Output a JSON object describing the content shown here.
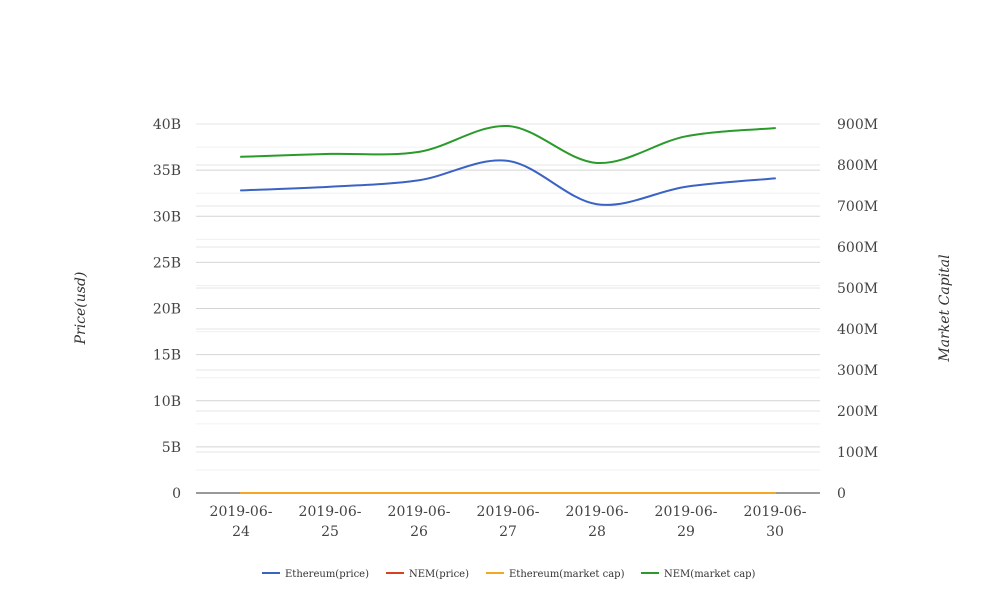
{
  "chart_data": {
    "type": "line",
    "categories": [
      "2019-06-24",
      "2019-06-25",
      "2019-06-26",
      "2019-06-27",
      "2019-06-28",
      "2019-06-29",
      "2019-06-30"
    ],
    "category_lines": [
      [
        "2019-06-",
        "24"
      ],
      [
        "2019-06-",
        "25"
      ],
      [
        "2019-06-",
        "26"
      ],
      [
        "2019-06-",
        "27"
      ],
      [
        "2019-06-",
        "28"
      ],
      [
        "2019-06-",
        "29"
      ],
      [
        "2019-06-",
        "30"
      ]
    ],
    "y_left": {
      "label": "Price(usd)",
      "min": 0,
      "max": 40000000000,
      "ticks": [
        0,
        5000000000,
        10000000000,
        15000000000,
        20000000000,
        25000000000,
        30000000000,
        35000000000,
        40000000000
      ],
      "tick_labels": [
        "0",
        "5B",
        "10B",
        "15B",
        "20B",
        "25B",
        "30B",
        "35B",
        "40B"
      ]
    },
    "y_right": {
      "label": "Market Capital",
      "min": 0,
      "max": 900000000,
      "ticks": [
        0,
        100000000,
        200000000,
        300000000,
        400000000,
        500000000,
        600000000,
        700000000,
        800000000,
        900000000
      ],
      "tick_labels": [
        "0",
        "100M",
        "200M",
        "300M",
        "400M",
        "500M",
        "600M",
        "700M",
        "800M",
        "900M"
      ]
    },
    "series": [
      {
        "name": "Ethereum(price)",
        "axis": "left",
        "color": "#3b63c4",
        "values": [
          32800000000,
          33200000000,
          33900000000,
          36000000000,
          31300000000,
          33200000000,
          34100000000
        ]
      },
      {
        "name": "NEM(price)",
        "axis": "left",
        "color": "#d9411e",
        "values": [
          0.09,
          0.09,
          0.09,
          0.09,
          0.08,
          0.08,
          0.08
        ]
      },
      {
        "name": "Ethereum(market cap)",
        "axis": "left",
        "color": "#f5a623",
        "values": [
          300,
          310,
          320,
          330,
          290,
          310,
          320
        ]
      },
      {
        "name": "NEM(market cap)",
        "axis": "right",
        "color": "#2a9a2a",
        "values": [
          820000000,
          827000000,
          832000000,
          895000000,
          805000000,
          870000000,
          890000000
        ]
      }
    ],
    "grid": true,
    "legend_position": "bottom"
  }
}
